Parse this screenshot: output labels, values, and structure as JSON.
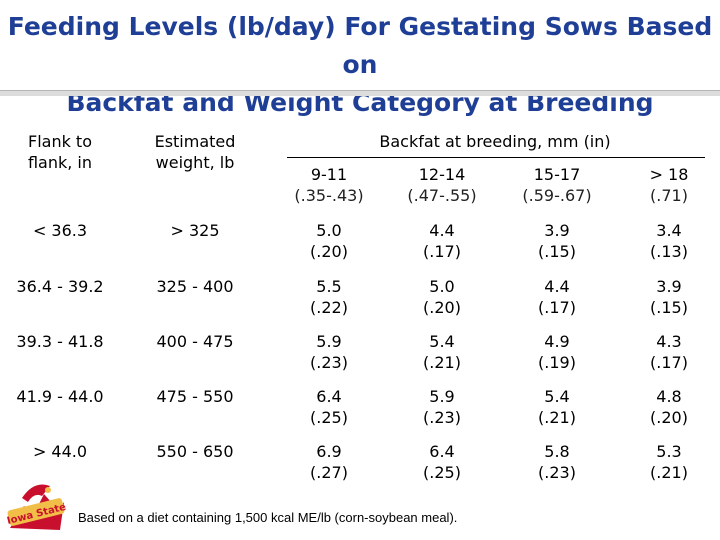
{
  "title": {
    "line1": "Feeding Levels (lb/day) For Gestating Sows Based on",
    "line2": "Backfat and Weight Category at Breeding"
  },
  "table": {
    "col_flank_header": {
      "line1": "Flank to",
      "line2": "flank, in"
    },
    "col_weight_header": {
      "line1": "Estimated",
      "line2": "weight, lb"
    },
    "backfat_header": "Backfat at breeding, mm (in)",
    "backfat_columns": [
      {
        "mm": "9-11",
        "inch": "(.35-.43)"
      },
      {
        "mm": "12-14",
        "inch": "(.47-.55)"
      },
      {
        "mm": "15-17",
        "inch": "(.59-.67)"
      },
      {
        "mm": "> 18",
        "inch": "(.71)"
      }
    ],
    "rows": [
      {
        "flank": "< 36.3",
        "weight": "> 325",
        "values": [
          {
            "v": "5.0",
            "s": "(.20)"
          },
          {
            "v": "4.4",
            "s": "(.17)"
          },
          {
            "v": "3.9",
            "s": "(.15)"
          },
          {
            "v": "3.4",
            "s": "(.13)"
          }
        ]
      },
      {
        "flank": "36.4 - 39.2",
        "weight": "325 - 400",
        "values": [
          {
            "v": "5.5",
            "s": "(.22)"
          },
          {
            "v": "5.0",
            "s": "(.20)"
          },
          {
            "v": "4.4",
            "s": "(.17)"
          },
          {
            "v": "3.9",
            "s": "(.15)"
          }
        ]
      },
      {
        "flank": "39.3 - 41.8",
        "weight": "400 - 475",
        "values": [
          {
            "v": "5.9",
            "s": "(.23)"
          },
          {
            "v": "5.4",
            "s": "(.21)"
          },
          {
            "v": "4.9",
            "s": "(.19)"
          },
          {
            "v": "4.3",
            "s": "(.17)"
          }
        ]
      },
      {
        "flank": "41.9 - 44.0",
        "weight": "475 - 550",
        "values": [
          {
            "v": "6.4",
            "s": "(.25)"
          },
          {
            "v": "5.9",
            "s": "(.23)"
          },
          {
            "v": "5.4",
            "s": "(.21)"
          },
          {
            "v": "4.8",
            "s": "(.20)"
          }
        ]
      },
      {
        "flank": "> 44.0",
        "weight": "550 - 650",
        "values": [
          {
            "v": "6.9",
            "s": "(.27)"
          },
          {
            "v": "6.4",
            "s": "(.25)"
          },
          {
            "v": "5.8",
            "s": "(.23)"
          },
          {
            "v": "5.3",
            "s": "(.21)"
          }
        ]
      }
    ]
  },
  "footnote": "Based on a diet containing 1,500 kcal ME/lb (corn-soybean meal).",
  "logo": {
    "text": "Iowa State",
    "icon": "cyclone-mascot-logo"
  },
  "colors": {
    "title": "#1f3f97",
    "logo_red": "#c8102e",
    "logo_gold": "#f1be48"
  }
}
